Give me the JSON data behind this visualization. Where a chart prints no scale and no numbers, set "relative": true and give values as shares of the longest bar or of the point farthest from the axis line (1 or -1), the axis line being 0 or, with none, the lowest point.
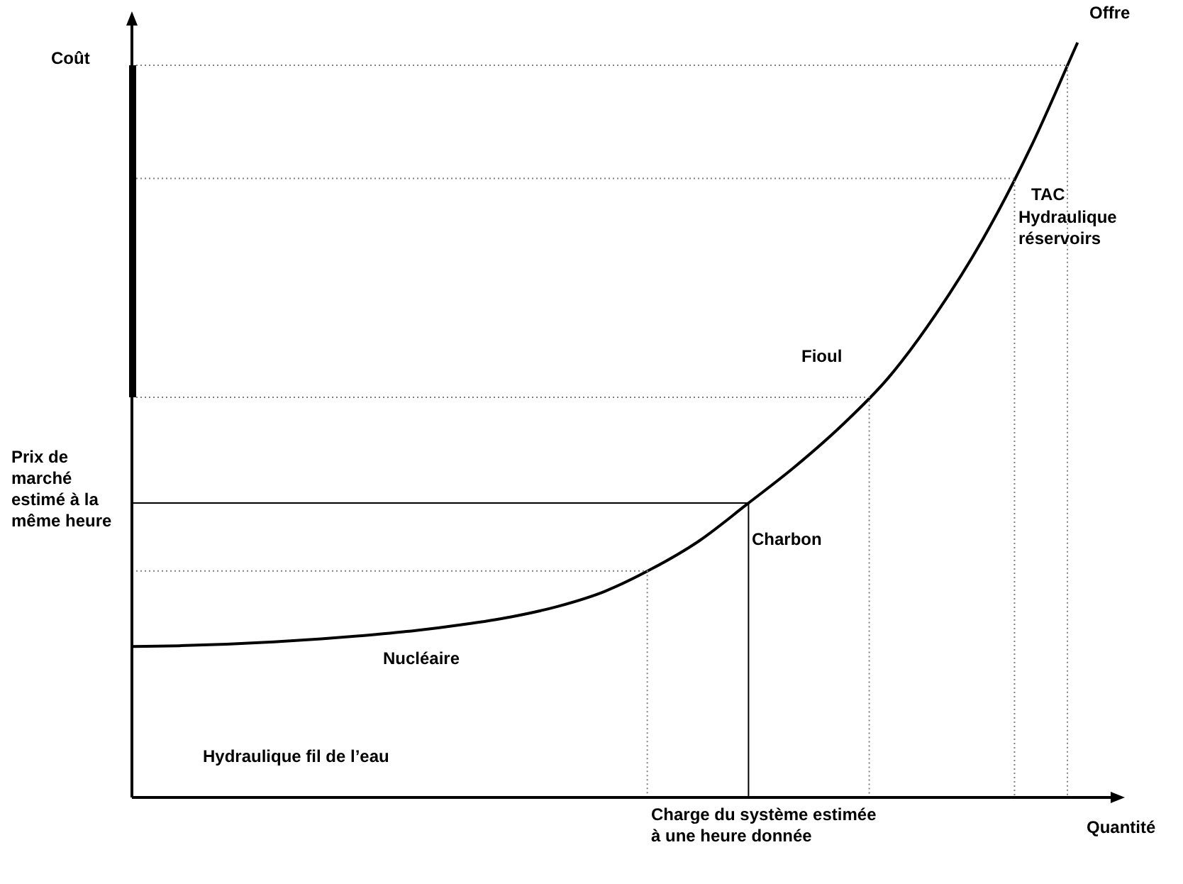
{
  "chart_data": {
    "type": "line",
    "relative": true,
    "ylabel": "Coût",
    "xlabel": "Quantité",
    "categories": [
      null,
      null,
      null,
      null,
      null,
      null,
      null,
      null,
      null,
      null,
      null,
      null,
      null,
      null,
      null,
      null,
      null,
      null,
      null,
      null,
      null,
      null
    ],
    "series": [
      {
        "name": "Offre",
        "color": "#000000",
        "values": [
          0.2,
          0.201,
          0.203,
          0.206,
          0.21,
          0.215,
          0.221,
          0.229,
          0.239,
          0.253,
          0.273,
          0.303,
          0.34,
          0.388,
          0.437,
          0.492,
          0.556,
          0.64,
          0.74,
          0.86,
          1.0,
          null
        ]
      }
    ],
    "ref_lines": [
      {
        "axis": "y",
        "value": 0.3,
        "color": "#808080",
        "line_style": "dotted"
      },
      {
        "axis": "y",
        "value": 0.39,
        "color": "#000000",
        "line_style": "solid",
        "label": "Prix de marché estimé à la même heure"
      },
      {
        "axis": "y",
        "value": 0.53,
        "color": "#808080",
        "line_style": "dotted"
      },
      {
        "axis": "y",
        "value": 0.82,
        "color": "#808080",
        "line_style": "dotted"
      },
      {
        "axis": "y",
        "value": 0.97,
        "color": "#808080",
        "line_style": "dotted"
      }
    ],
    "annotations": [
      "TAC",
      "Hydraulique réservoirs",
      "Fioul",
      "Charbon",
      "Nucléaire",
      "Hydraulique fil de l’eau",
      "Charge du système estimée à une heure donnée"
    ],
    "marker": "none",
    "line_style": "solid"
  }
}
